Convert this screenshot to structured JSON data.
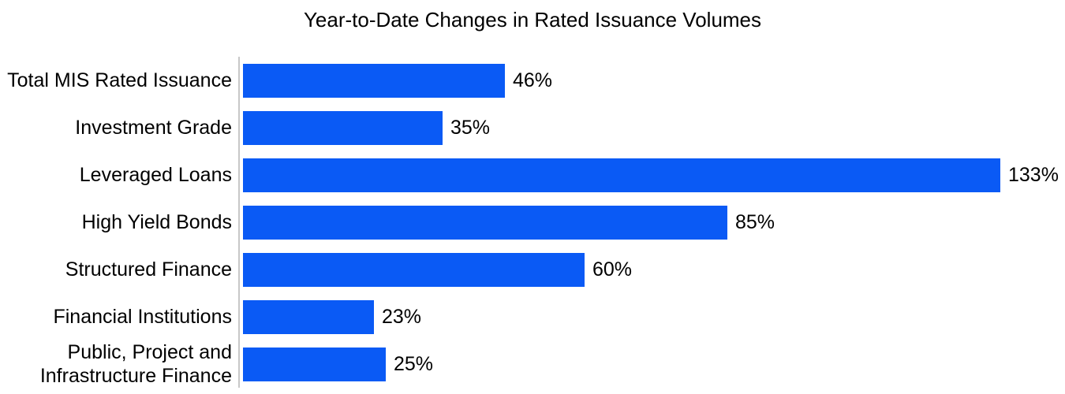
{
  "chart_data": {
    "type": "bar",
    "orientation": "horizontal",
    "title": "Year-to-Date Changes in Rated Issuance Volumes",
    "categories": [
      "Total MIS Rated Issuance",
      "Investment Grade",
      "Leveraged Loans",
      "High Yield Bonds",
      "Structured Finance",
      "Financial Institutions",
      "Public, Project and Infrastructure Finance"
    ],
    "values": [
      46,
      35,
      133,
      85,
      60,
      23,
      25
    ],
    "value_labels": [
      "46%",
      "35%",
      "133%",
      "85%",
      "60%",
      "23%",
      "25%"
    ],
    "xlabel": "",
    "ylabel": "",
    "xlim": [
      0,
      145
    ],
    "grid": false,
    "legend": false,
    "data_labels": "outside-end",
    "bar_color": "#0a5af5",
    "axis_line_color": "#c8c8c8",
    "text_color": "#000000",
    "background_color": "#ffffff"
  }
}
